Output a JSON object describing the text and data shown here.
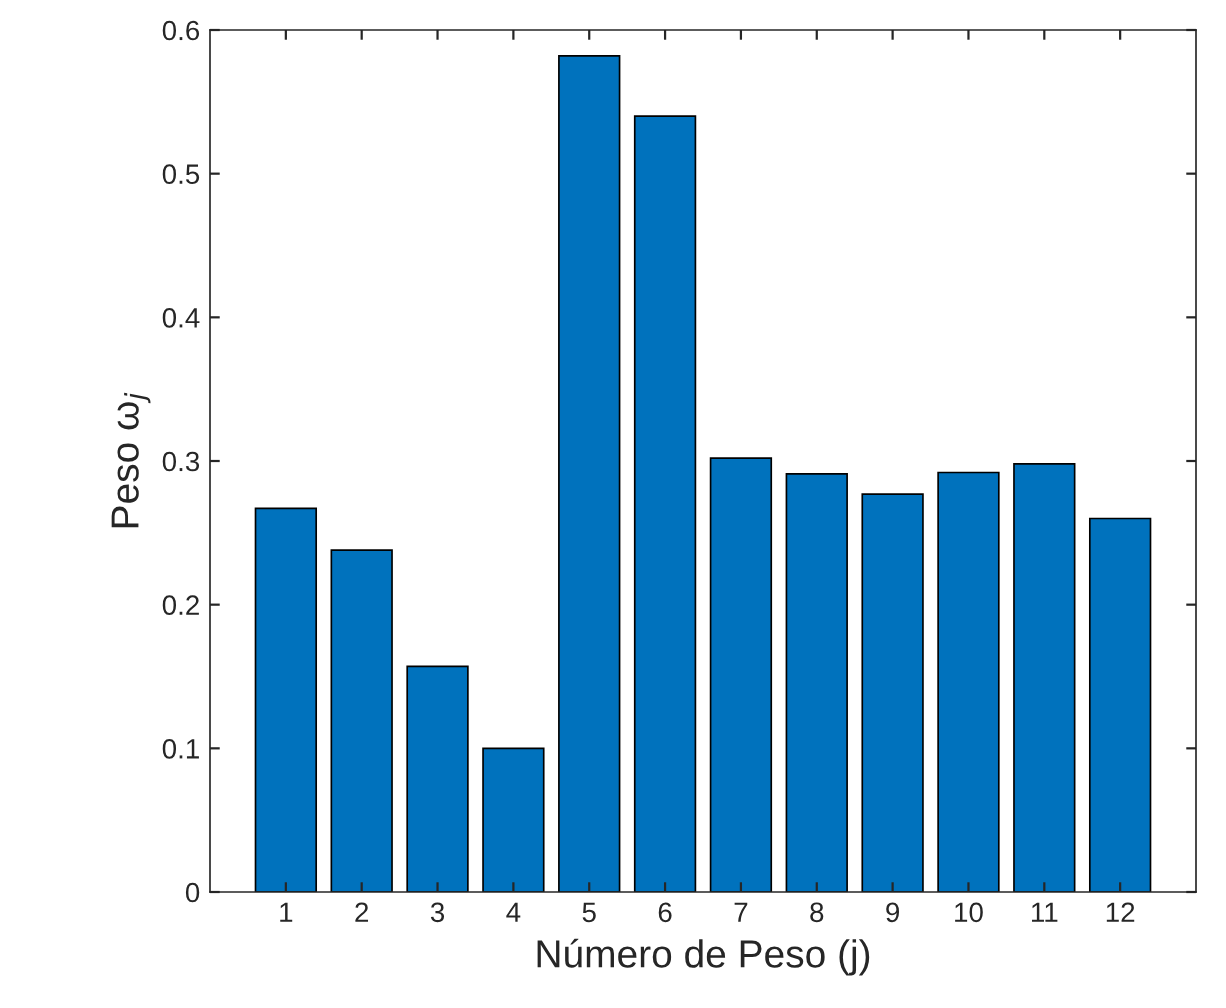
{
  "chart_data": {
    "type": "bar",
    "xlabel": "Número de Peso (j)",
    "ylabel": "Peso ω$_{j}$",
    "categories": [
      "1",
      "2",
      "3",
      "4",
      "5",
      "6",
      "7",
      "8",
      "9",
      "10",
      "11",
      "12"
    ],
    "values": [
      0.267,
      0.238,
      0.157,
      0.1,
      0.582,
      0.54,
      0.302,
      0.291,
      0.277,
      0.292,
      0.298,
      0.26
    ],
    "color": "#0072bd",
    "ylim": [
      0,
      0.6
    ],
    "yticks": [
      0,
      0.1,
      0.2,
      0.3,
      0.4,
      0.5,
      0.6
    ],
    "grid": false
  }
}
